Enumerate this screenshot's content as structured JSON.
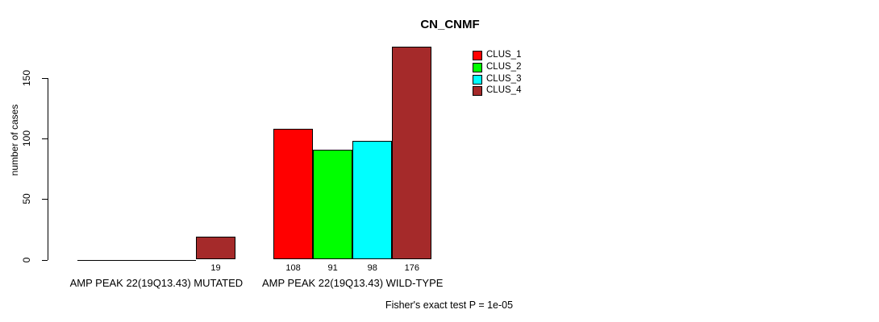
{
  "chart_data": {
    "type": "bar",
    "title": "CN_CNMF",
    "ylabel": "number of cases",
    "xlabel": "",
    "yticks": [
      0,
      50,
      100,
      150
    ],
    "ylim": [
      0,
      180
    ],
    "grid": false,
    "legend_position": "top-right",
    "series": [
      {
        "name": "CLUS_1",
        "color": "#ff0000"
      },
      {
        "name": "CLUS_2",
        "color": "#00ff00"
      },
      {
        "name": "CLUS_3",
        "color": "#00ffff"
      },
      {
        "name": "CLUS_4",
        "color": "#a52a2a"
      }
    ],
    "groups": [
      {
        "label": "AMP PEAK 22(19Q13.43) MUTATED",
        "values": [
          0,
          0,
          0,
          19
        ]
      },
      {
        "label": "AMP PEAK 22(19Q13.43) WILD-TYPE",
        "values": [
          108,
          91,
          98,
          176
        ]
      }
    ],
    "annotation": "Fisher's exact test P = 1e-05"
  }
}
